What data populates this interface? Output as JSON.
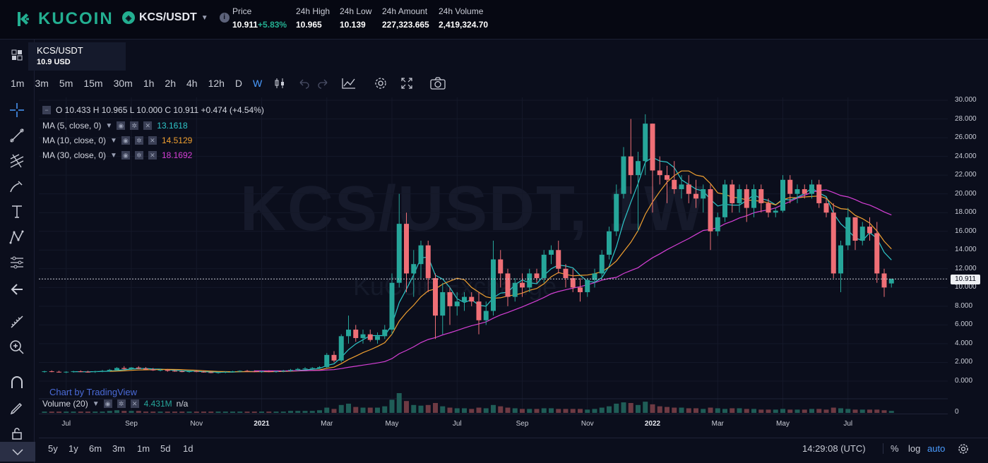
{
  "header": {
    "brand": "KUCOIN",
    "pair": "KCS/USDT",
    "stats": [
      {
        "label": "Price",
        "value": "10.911",
        "change": "+5.83%"
      },
      {
        "label": "24h High",
        "value": "10.965"
      },
      {
        "label": "24h Low",
        "value": "10.139"
      },
      {
        "label": "24h Amount",
        "value": "227,323.665"
      },
      {
        "label": "24h Volume",
        "value": "2,419,324.70"
      }
    ]
  },
  "symbol_box": {
    "name": "KCS/USDT",
    "price": "10.9 USD"
  },
  "timeframes": [
    "1m",
    "3m",
    "5m",
    "15m",
    "30m",
    "1h",
    "2h",
    "4h",
    "12h",
    "D",
    "W"
  ],
  "active_timeframe": "W",
  "legend": {
    "ohlc": "O 10.433   H 10.965   L 10.000   C 10.911   +0.474 (+4.54%)",
    "ma": [
      {
        "label": "MA (5, close, 0)",
        "value": "13.1618",
        "color": "#2ec7c9"
      },
      {
        "label": "MA (10, close, 0)",
        "value": "14.5129",
        "color": "#f0a030"
      },
      {
        "label": "MA (30, close, 0)",
        "value": "18.1692",
        "color": "#d63fd6"
      }
    ],
    "volume": {
      "label": "Volume (20)",
      "value": "4.431M",
      "extra": "n/a"
    }
  },
  "watermark": "KCS/USDT, 1W",
  "watermark_sub": "KuCoin Exchange",
  "tv_credit": "Chart by TradingView",
  "price_tag": "10.911",
  "bottom": {
    "ranges": [
      "5y",
      "1y",
      "6m",
      "3m",
      "1m",
      "5d",
      "1d"
    ],
    "time": "14:29:08 (UTC)",
    "pct": "%",
    "log": "log",
    "auto": "auto"
  },
  "colors": {
    "up": "#26a69a",
    "down": "#ef6f76",
    "accent": "#23af91",
    "active": "#4a9cff"
  },
  "chart_data": {
    "type": "candlestick",
    "interval": "W",
    "y_ticks": [
      "30.000",
      "28.000",
      "26.000",
      "24.000",
      "22.000",
      "20.000",
      "18.000",
      "16.000",
      "14.000",
      "12.000",
      "10.000",
      "8.000",
      "6.000",
      "4.000",
      "2.000",
      "0.000"
    ],
    "ylim": [
      0,
      30
    ],
    "x_ticks": [
      {
        "label": "Jul",
        "bold": false
      },
      {
        "label": "Sep",
        "bold": false
      },
      {
        "label": "Nov",
        "bold": false
      },
      {
        "label": "2021",
        "bold": true
      },
      {
        "label": "Mar",
        "bold": false
      },
      {
        "label": "May",
        "bold": false
      },
      {
        "label": "Jul",
        "bold": false
      },
      {
        "label": "Sep",
        "bold": false
      },
      {
        "label": "Nov",
        "bold": false
      },
      {
        "label": "2022",
        "bold": true
      },
      {
        "label": "Mar",
        "bold": false
      },
      {
        "label": "May",
        "bold": false
      },
      {
        "label": "Jul",
        "bold": false
      }
    ],
    "last_price": 10.911,
    "candles": [
      [
        1.0,
        1.1,
        0.9,
        1.05
      ],
      [
        1.05,
        1.15,
        0.95,
        1.0
      ],
      [
        1.0,
        1.1,
        0.9,
        0.95
      ],
      [
        0.95,
        1.05,
        0.85,
        1.0
      ],
      [
        1.0,
        1.1,
        0.9,
        1.05
      ],
      [
        1.05,
        1.15,
        0.95,
        1.0
      ],
      [
        1.0,
        1.1,
        0.9,
        0.98
      ],
      [
        0.98,
        1.1,
        0.88,
        1.05
      ],
      [
        1.05,
        1.2,
        0.95,
        1.1
      ],
      [
        1.1,
        1.3,
        1.0,
        1.2
      ],
      [
        1.2,
        1.5,
        1.1,
        1.4
      ],
      [
        1.4,
        1.6,
        1.2,
        1.3
      ],
      [
        1.3,
        1.5,
        1.2,
        1.45
      ],
      [
        1.45,
        1.6,
        1.3,
        1.35
      ],
      [
        1.35,
        1.5,
        1.2,
        1.25
      ],
      [
        1.25,
        1.4,
        1.1,
        1.15
      ],
      [
        1.15,
        1.3,
        1.05,
        1.2
      ],
      [
        1.2,
        1.3,
        1.0,
        1.1
      ],
      [
        1.1,
        1.2,
        1.0,
        1.05
      ],
      [
        1.05,
        1.15,
        0.95,
        1.0
      ],
      [
        1.0,
        1.1,
        0.9,
        1.05
      ],
      [
        1.05,
        1.1,
        0.95,
        1.0
      ],
      [
        1.0,
        1.1,
        0.9,
        0.95
      ],
      [
        0.95,
        1.05,
        0.85,
        0.9
      ],
      [
        0.9,
        1.0,
        0.8,
        0.95
      ],
      [
        0.95,
        1.05,
        0.85,
        1.0
      ],
      [
        1.0,
        1.1,
        0.9,
        1.05
      ],
      [
        1.05,
        1.15,
        0.95,
        1.1
      ],
      [
        1.1,
        1.2,
        1.0,
        1.05
      ],
      [
        1.05,
        1.15,
        0.95,
        1.0
      ],
      [
        1.0,
        1.1,
        0.9,
        1.05
      ],
      [
        1.05,
        1.15,
        0.95,
        1.0
      ],
      [
        1.0,
        1.1,
        0.9,
        1.05
      ],
      [
        1.05,
        1.2,
        0.95,
        1.1
      ],
      [
        1.1,
        1.3,
        1.0,
        1.2
      ],
      [
        1.2,
        1.4,
        1.1,
        1.3
      ],
      [
        1.3,
        1.5,
        1.2,
        1.35
      ],
      [
        1.35,
        1.5,
        1.2,
        1.4
      ],
      [
        1.4,
        1.6,
        1.3,
        1.5
      ],
      [
        1.5,
        3.0,
        1.4,
        2.8
      ],
      [
        2.8,
        3.2,
        2.0,
        2.2
      ],
      [
        2.2,
        5.0,
        2.0,
        4.8
      ],
      [
        4.8,
        7.0,
        4.0,
        5.5
      ],
      [
        5.5,
        6.0,
        4.2,
        4.6
      ],
      [
        4.6,
        5.5,
        4.0,
        5.0
      ],
      [
        5.0,
        5.5,
        4.2,
        4.4
      ],
      [
        4.4,
        5.2,
        4.0,
        4.8
      ],
      [
        4.8,
        6.0,
        4.5,
        5.5
      ],
      [
        5.5,
        11.5,
        5.0,
        10.5
      ],
      [
        10.5,
        20.0,
        10.0,
        16.8
      ],
      [
        16.8,
        18.0,
        9.5,
        11.5
      ],
      [
        11.5,
        14.0,
        9.0,
        12.5
      ],
      [
        12.5,
        15.0,
        11.0,
        14.5
      ],
      [
        14.5,
        15.0,
        9.5,
        11.0
      ],
      [
        11.0,
        11.5,
        4.5,
        7.0
      ],
      [
        7.0,
        10.5,
        5.0,
        9.5
      ],
      [
        9.5,
        10.0,
        6.0,
        8.0
      ],
      [
        8.0,
        9.5,
        7.0,
        8.5
      ],
      [
        8.5,
        9.5,
        7.5,
        9.0
      ],
      [
        9.0,
        9.5,
        8.0,
        8.5
      ],
      [
        8.5,
        9.5,
        5.0,
        6.5
      ],
      [
        6.5,
        8.5,
        6.0,
        7.5
      ],
      [
        7.5,
        15.0,
        7.0,
        13.0
      ],
      [
        13.0,
        14.0,
        10.0,
        11.5
      ],
      [
        11.5,
        12.0,
        8.0,
        9.0
      ],
      [
        9.0,
        11.0,
        8.5,
        10.5
      ],
      [
        10.5,
        11.5,
        9.0,
        10.0
      ],
      [
        10.0,
        12.0,
        9.5,
        11.5
      ],
      [
        11.5,
        12.0,
        10.5,
        11.0
      ],
      [
        11.0,
        14.0,
        10.5,
        13.5
      ],
      [
        13.5,
        14.5,
        12.5,
        14.0
      ],
      [
        14.0,
        15.0,
        11.5,
        12.0
      ],
      [
        12.0,
        12.5,
        10.0,
        11.0
      ],
      [
        11.0,
        12.0,
        9.5,
        10.0
      ],
      [
        10.0,
        11.0,
        8.5,
        9.5
      ],
      [
        9.5,
        11.0,
        9.0,
        10.8
      ],
      [
        10.8,
        12.0,
        10.0,
        11.5
      ],
      [
        11.5,
        14.0,
        11.0,
        13.5
      ],
      [
        13.5,
        16.5,
        13.0,
        16.0
      ],
      [
        16.0,
        21.0,
        15.5,
        20.0
      ],
      [
        20.0,
        25.0,
        19.5,
        24.0
      ],
      [
        24.0,
        28.0,
        20.0,
        22.0
      ],
      [
        22.0,
        24.5,
        16.0,
        23.5
      ],
      [
        23.5,
        28.5,
        22.0,
        27.5
      ],
      [
        27.5,
        27.5,
        18.0,
        22.5
      ],
      [
        22.5,
        24.0,
        21.0,
        22.0
      ],
      [
        22.0,
        23.0,
        19.0,
        21.5
      ],
      [
        21.5,
        23.5,
        20.0,
        20.5
      ],
      [
        20.5,
        22.0,
        19.5,
        21.0
      ],
      [
        21.0,
        22.0,
        19.0,
        20.0
      ],
      [
        20.0,
        21.5,
        18.5,
        19.5
      ],
      [
        19.5,
        21.0,
        18.0,
        20.5
      ],
      [
        20.5,
        21.0,
        14.0,
        16.0
      ],
      [
        16.0,
        18.0,
        15.5,
        17.5
      ],
      [
        17.5,
        21.5,
        17.0,
        21.0
      ],
      [
        21.0,
        21.5,
        18.0,
        19.0
      ],
      [
        19.0,
        21.0,
        18.0,
        20.5
      ],
      [
        20.5,
        21.0,
        17.0,
        18.5
      ],
      [
        18.5,
        21.0,
        17.5,
        20.5
      ],
      [
        20.5,
        21.0,
        18.0,
        19.0
      ],
      [
        19.0,
        19.5,
        17.5,
        18.0
      ],
      [
        18.0,
        18.5,
        17.5,
        18.2
      ],
      [
        18.2,
        22.0,
        18.0,
        21.5
      ],
      [
        21.5,
        22.0,
        19.0,
        20.0
      ],
      [
        20.0,
        21.0,
        19.0,
        20.5
      ],
      [
        20.5,
        21.0,
        19.5,
        20.0
      ],
      [
        20.0,
        21.5,
        19.5,
        21.0
      ],
      [
        21.0,
        21.5,
        18.5,
        19.0
      ],
      [
        19.0,
        19.5,
        17.5,
        18.0
      ],
      [
        18.0,
        19.0,
        11.0,
        11.5
      ],
      [
        11.5,
        15.0,
        9.5,
        14.5
      ],
      [
        14.5,
        18.5,
        14.0,
        17.5
      ],
      [
        17.5,
        17.5,
        14.0,
        15.0
      ],
      [
        15.0,
        17.0,
        14.5,
        16.5
      ],
      [
        16.5,
        17.5,
        15.0,
        15.8
      ],
      [
        15.8,
        17.0,
        10.5,
        11.5
      ],
      [
        11.5,
        12.0,
        9.0,
        10.0
      ],
      [
        10.433,
        10.965,
        10.0,
        10.911
      ]
    ],
    "volumes": [
      0.2,
      0.2,
      0.2,
      0.2,
      0.2,
      0.2,
      0.2,
      0.2,
      0.2,
      0.3,
      0.4,
      0.3,
      0.3,
      0.3,
      0.2,
      0.2,
      0.2,
      0.2,
      0.2,
      0.2,
      0.2,
      0.2,
      0.2,
      0.2,
      0.2,
      0.2,
      0.2,
      0.2,
      0.2,
      0.2,
      0.2,
      0.2,
      0.2,
      0.2,
      0.3,
      0.3,
      0.3,
      0.3,
      0.4,
      0.8,
      0.6,
      1.2,
      1.4,
      0.9,
      0.8,
      0.8,
      0.8,
      1.0,
      2.0,
      3.0,
      1.8,
      1.2,
      1.1,
      1.2,
      1.5,
      1.0,
      0.8,
      0.7,
      0.7,
      0.6,
      0.8,
      0.7,
      1.2,
      1.0,
      0.8,
      0.7,
      0.6,
      0.6,
      0.6,
      0.7,
      0.7,
      0.6,
      0.6,
      0.6,
      0.6,
      0.5,
      0.6,
      0.8,
      1.0,
      1.4,
      1.6,
      1.5,
      1.2,
      1.7,
      1.3,
      1.0,
      0.9,
      0.8,
      0.8,
      0.7,
      0.7,
      0.6,
      0.8,
      0.7,
      0.6,
      0.7,
      0.7,
      0.6,
      0.6,
      0.5,
      0.5,
      0.5,
      0.6,
      0.5,
      0.5,
      0.5,
      0.6,
      0.6,
      0.5,
      0.8,
      0.7,
      0.6,
      0.5,
      0.5,
      0.5,
      0.5,
      0.4,
      0.3
    ]
  }
}
